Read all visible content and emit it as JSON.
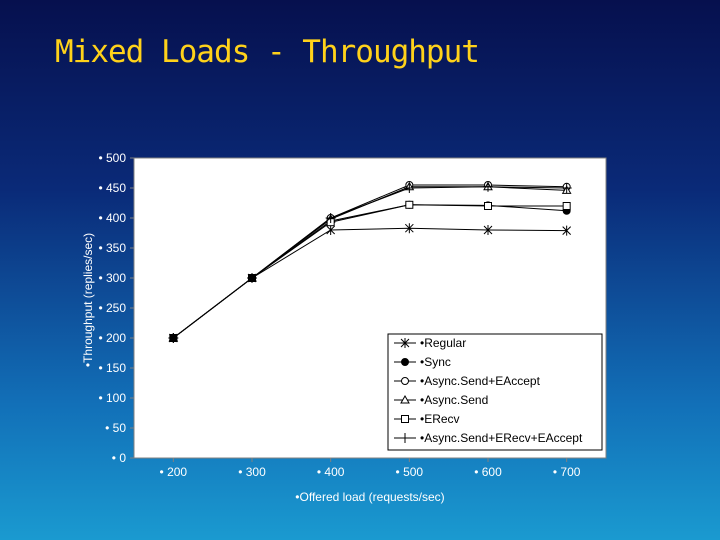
{
  "slide": {
    "title": "Mixed Loads - Throughput"
  },
  "chart_data": {
    "type": "line",
    "title": "",
    "xlabel": "•Offered load (requests/sec)",
    "ylabel": "•Throughput (replies/sec)",
    "xlim": [
      150,
      750
    ],
    "ylim": [
      0,
      500
    ],
    "xticks": [
      200,
      300,
      400,
      500,
      600,
      700
    ],
    "yticks": [
      0,
      50,
      100,
      150,
      200,
      250,
      300,
      350,
      400,
      450,
      500
    ],
    "x_tick_labels": [
      "• 200",
      "• 300",
      "• 400",
      "• 500",
      "• 600",
      "• 700"
    ],
    "y_tick_labels": [
      "• 0",
      "• 50",
      "• 100",
      "• 150",
      "• 200",
      "• 250",
      "• 300",
      "• 350",
      "• 400",
      "• 450",
      "• 500"
    ],
    "grid": false,
    "legend_position": "bottom-right",
    "x": [
      200,
      300,
      400,
      500,
      600,
      700
    ],
    "series": [
      {
        "name": "•Regular",
        "marker": "star",
        "values": [
          200,
          300,
          380,
          383,
          380,
          379
        ]
      },
      {
        "name": "•Sync",
        "marker": "filled-circle",
        "values": [
          200,
          300,
          395,
          422,
          421,
          412
        ]
      },
      {
        "name": "•Async.Send+EAccept",
        "marker": "open-circle",
        "values": [
          200,
          300,
          400,
          455,
          455,
          452
        ]
      },
      {
        "name": "•Async.Send",
        "marker": "open-triangle",
        "values": [
          200,
          300,
          398,
          452,
          452,
          446
        ]
      },
      {
        "name": "•ERecv",
        "marker": "open-square",
        "values": [
          200,
          300,
          393,
          422,
          420,
          420
        ]
      },
      {
        "name": "•Async.Send+ERecv+EAccept",
        "marker": "plus",
        "values": [
          200,
          300,
          400,
          450,
          452,
          450
        ]
      }
    ]
  }
}
